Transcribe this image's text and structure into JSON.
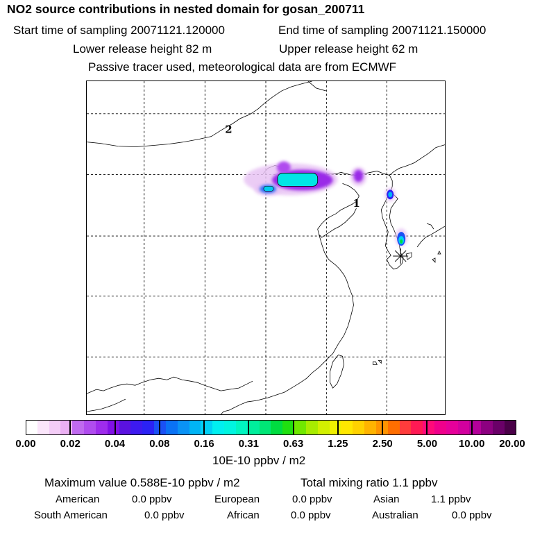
{
  "header": {
    "title": "NO2 source contributions in nested domain for gosan_200711",
    "start_time": "Start time of sampling 20071121.120000",
    "end_time": "End time of sampling 20071121.150000",
    "lower_release": "Lower release height   82 m",
    "upper_release": "Upper release height   62 m",
    "tracer_note": "Passive tracer used, meteorological data are from ECMWF"
  },
  "map": {
    "site_markers": [
      {
        "label": "1",
        "name": "site-1"
      },
      {
        "label": "2",
        "name": "site-2"
      }
    ],
    "receptor": "gosan"
  },
  "colorbar": {
    "colors": [
      "#ffffff",
      "#fbe6fb",
      "#f4cdf7",
      "#ebb0f3",
      "#c06af0",
      "#b04cef",
      "#9e2cec",
      "#8110e6",
      "#5a12e0",
      "#3d1af0",
      "#2b22f5",
      "#1a50f5",
      "#0a72f5",
      "#0a92f5",
      "#00b4f5",
      "#00d0f5",
      "#00f0f0",
      "#00f5e0",
      "#00f5c0",
      "#00ee9c",
      "#00e676",
      "#00dc40",
      "#20e010",
      "#70e800",
      "#a8ec00",
      "#d2f000",
      "#f0f000",
      "#ffe800",
      "#ffd200",
      "#ffb400",
      "#ff9400",
      "#ff6e00",
      "#ff3c3c",
      "#ff1a54",
      "#ff0a7a",
      "#f0008c",
      "#e6009a",
      "#d2009e",
      "#b4009a",
      "#8c0080",
      "#6a0068",
      "#4a0048"
    ],
    "ticks": [
      "0.00",
      "0.02",
      "0.04",
      "0.08",
      "0.16",
      "0.31",
      "0.63",
      "1.25",
      "2.50",
      "5.00",
      "10.00",
      "20.00"
    ],
    "units": "10E-10 ppbv / m2"
  },
  "stats": {
    "max_value": "Maximum value  0.588E-10 ppbv / m2",
    "total_mixing": "Total mixing ratio        1.1 ppbv",
    "regions": [
      {
        "name": "American",
        "value": "0.0 ppbv"
      },
      {
        "name": "European",
        "value": "0.0 ppbv"
      },
      {
        "name": "Asian",
        "value": "1.1 ppbv"
      },
      {
        "name": "South American",
        "value": "0.0 ppbv"
      },
      {
        "name": "African",
        "value": "0.0 ppbv"
      },
      {
        "name": "Australian",
        "value": "0.0 ppbv"
      }
    ]
  }
}
